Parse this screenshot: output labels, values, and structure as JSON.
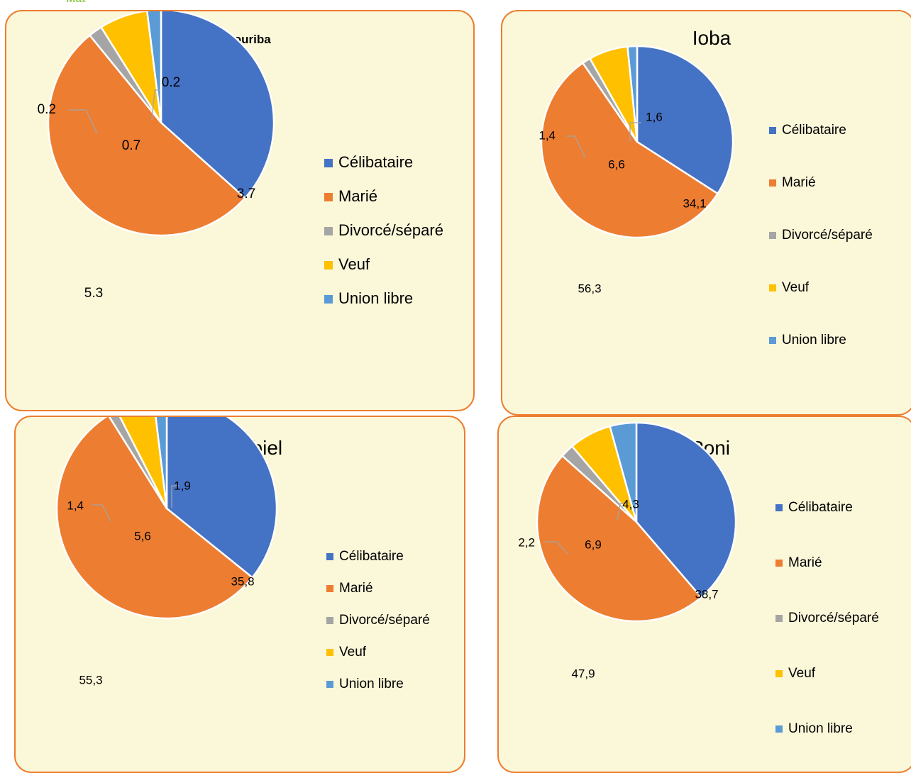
{
  "header_fragment": "Mat",
  "categories": [
    "Célibataire",
    "Marié",
    "Divorcé/séparé",
    "Veuf",
    "Union libre"
  ],
  "colors": {
    "celibataire": "#4472c4",
    "marie": "#ed7d31",
    "divorce": "#a5a5a5",
    "veuf": "#ffc000",
    "union": "#5b9bd5",
    "panel_bg": "#fbf7d9",
    "panel_border": "#ed7d31"
  },
  "chart_data": [
    {
      "type": "pie",
      "title": "Bougouriba",
      "categories": [
        "Célibataire",
        "Marié",
        "Divorcé/séparé",
        "Veuf",
        "Union libre"
      ],
      "values": [
        3.7,
        5.3,
        0.2,
        0.7,
        0.2
      ],
      "labels": [
        "3.7",
        "5.3",
        "0.2",
        "0.7",
        "0.2"
      ],
      "legend": "right"
    },
    {
      "type": "pie",
      "title": "Ioba",
      "categories": [
        "Célibataire",
        "Marié",
        "Divorcé/séparé",
        "Veuf",
        "Union libre"
      ],
      "values": [
        34.1,
        56.3,
        1.4,
        6.6,
        1.6
      ],
      "labels": [
        "34,1",
        "56,3",
        "1,4",
        "6,6",
        "1,6"
      ],
      "legend": "right"
    },
    {
      "type": "pie",
      "title": "Noumbiel",
      "categories": [
        "Célibataire",
        "Marié",
        "Divorcé/séparé",
        "Veuf",
        "Union libre"
      ],
      "values": [
        35.8,
        55.3,
        1.4,
        5.6,
        1.9
      ],
      "labels": [
        "35,8",
        "55,3",
        "1,4",
        "5,6",
        "1,9"
      ],
      "legend": "right"
    },
    {
      "type": "pie",
      "title": "Poni",
      "categories": [
        "Célibataire",
        "Marié",
        "Divorcé/séparé",
        "Veuf",
        "Union libre"
      ],
      "values": [
        38.7,
        47.9,
        2.2,
        6.9,
        4.3
      ],
      "labels": [
        "38,7",
        "47,9",
        "2,2",
        "6,9",
        "4,3"
      ],
      "legend": "right"
    }
  ]
}
